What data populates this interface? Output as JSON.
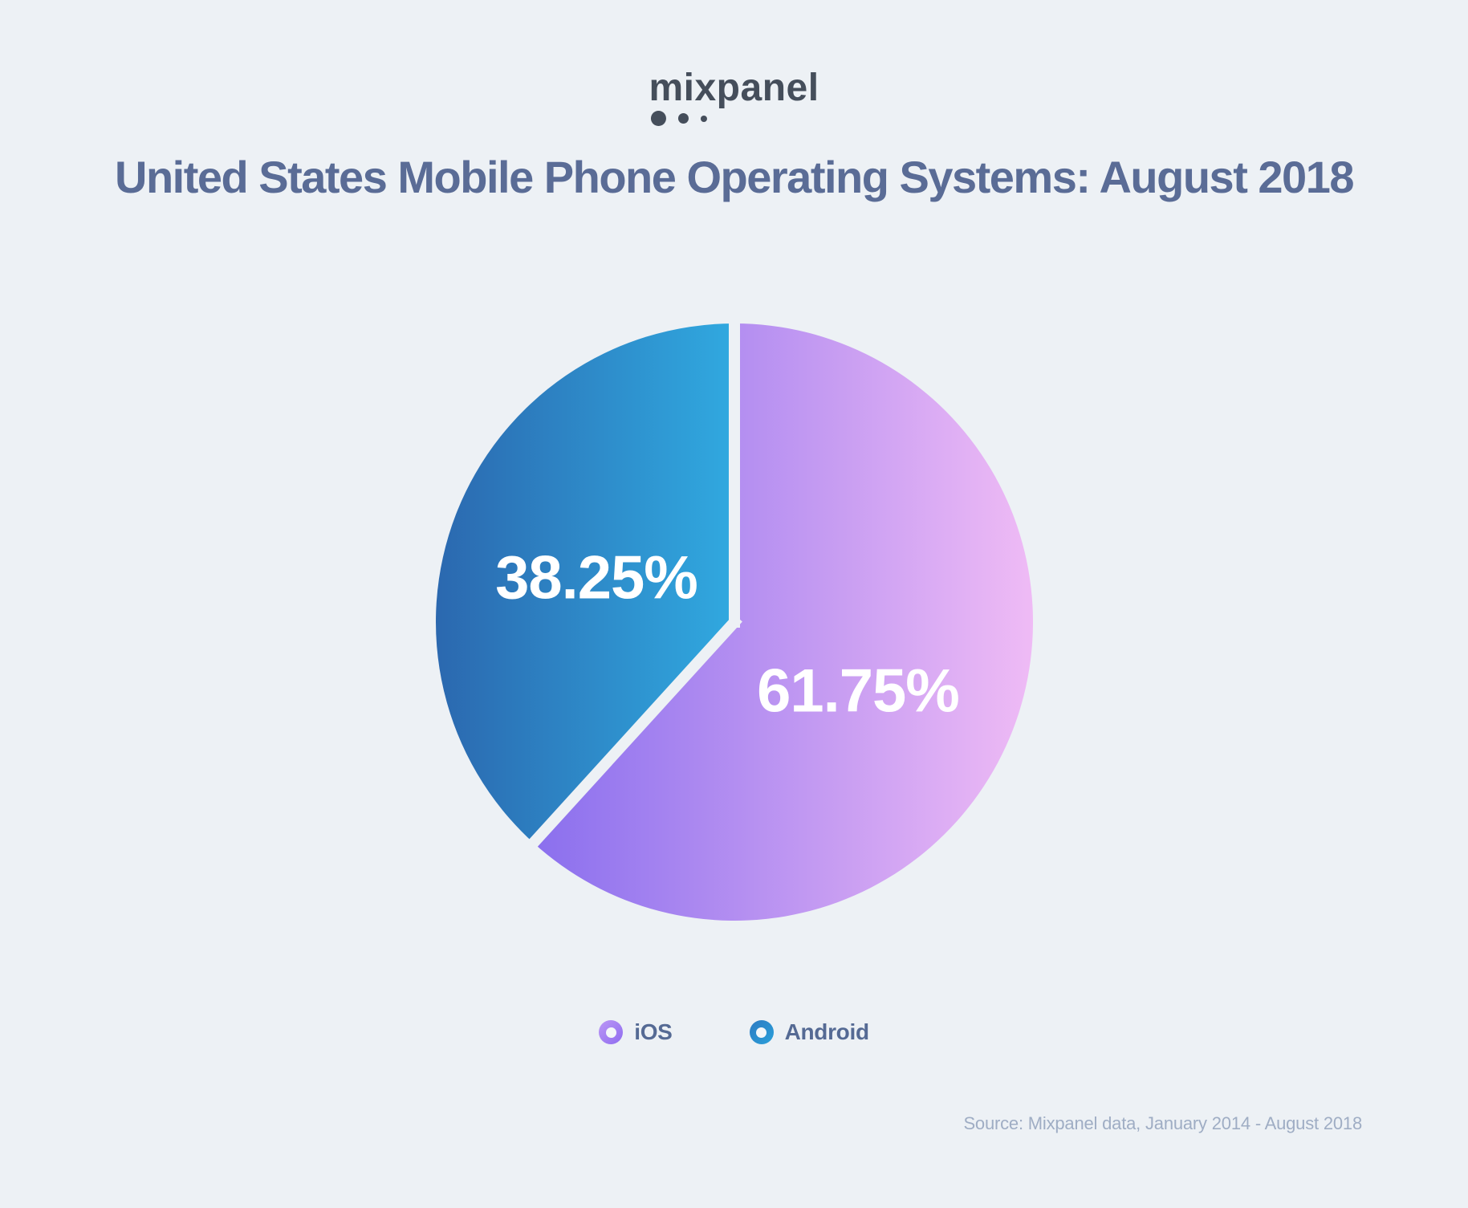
{
  "page": {
    "background": "#edf1f5"
  },
  "logo": {
    "text": "mixpanel",
    "color": "#454e5b"
  },
  "title": {
    "text": "United States Mobile Phone Operating Systems: August 2018",
    "color": "#5a6c96"
  },
  "chart_data": {
    "type": "pie",
    "title": "United States Mobile Phone Operating Systems: August 2018",
    "start_angle_deg": 0,
    "direction": "clockwise",
    "legend_position": "bottom",
    "divider_color": "#edf1f5",
    "value_label_color": "#ffffff",
    "slices": [
      {
        "name": "iOS",
        "value": 61.75,
        "label": "61.75%",
        "gradient": [
          "#8a6fee",
          "#efbbf5"
        ],
        "swatch_gradient": [
          "#bb97f5",
          "#8f6cf0"
        ]
      },
      {
        "name": "Android",
        "value": 38.25,
        "label": "38.25%",
        "gradient": [
          "#2b68af",
          "#30a9e0"
        ],
        "swatch_gradient": [
          "#2d7ac2",
          "#2aa0da"
        ]
      }
    ]
  },
  "legend": {
    "label_color": "#556a94"
  },
  "source": {
    "text": "Source: Mixpanel data, January 2014 - August 2018",
    "color": "#9fadc4"
  }
}
